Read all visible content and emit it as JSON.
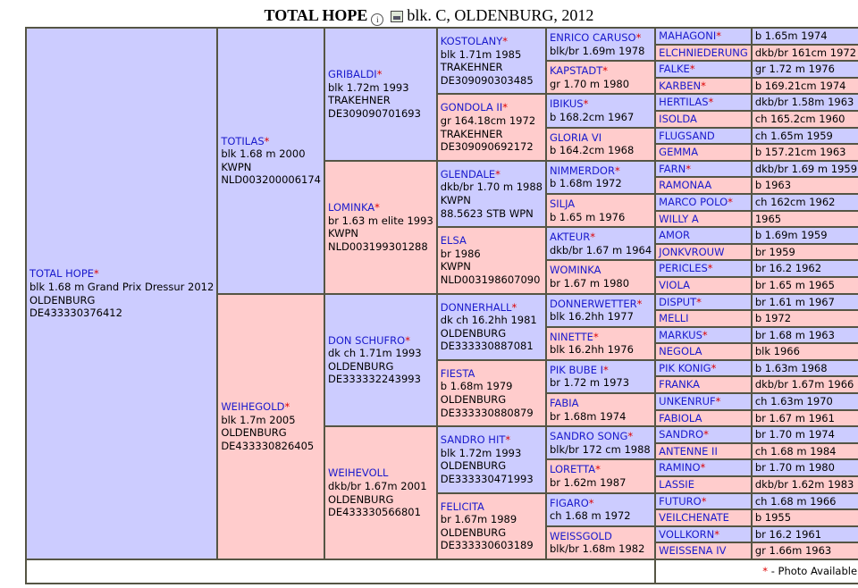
{
  "header": {
    "name": "TOTAL HOPE",
    "info_icon": "info-icon",
    "photo_icon": "image-icon",
    "details": "blk. C, OLDENBURG, 2012"
  },
  "legend": {
    "star": "*",
    "text": " - Photo Available"
  },
  "colors": {
    "male_bg": "#ccccff",
    "female_bg": "#ffcccc",
    "name": "#1a1acc",
    "star": "#dd0000"
  },
  "gen1": {
    "name": "TOTAL HOPE",
    "star": "*",
    "l1": "blk 1.68 m Grand Prix Dressur 2012",
    "l2": "OLDENBURG",
    "l3": "DE433330376412"
  },
  "gen2": [
    {
      "name": "TOTILAS",
      "star": "*",
      "l1": "blk 1.68 m 2000",
      "l2": "KWPN",
      "l3": "NLD003200006174"
    },
    {
      "name": "WEIHEGOLD",
      "star": "*",
      "l1": "blk 1.7m 2005",
      "l2": "OLDENBURG",
      "l3": "DE433330826405"
    }
  ],
  "gen3": [
    {
      "name": "GRIBALDI",
      "star": "*",
      "l1": "blk 1.72m 1993",
      "l2": "TRAKEHNER",
      "l3": "DE309090701693"
    },
    {
      "name": "LOMINKA",
      "star": "*",
      "l1": "br 1.63 m elite 1993",
      "l2": "KWPN",
      "l3": "NLD003199301288"
    },
    {
      "name": "DON SCHUFRO",
      "star": "*",
      "l1": "dk ch 1.71m 1993",
      "l2": "OLDENBURG",
      "l3": "DE333332243993"
    },
    {
      "name": "WEIHEVOLL",
      "star": "",
      "l1": "dkb/br 1.67m 2001",
      "l2": "OLDENBURG",
      "l3": "DE433330566801"
    }
  ],
  "gen4": [
    {
      "name": "KOSTOLANY",
      "star": "*",
      "l1": "blk 1.71m 1985",
      "l2": "TRAKEHNER",
      "l3": "DE309090303485"
    },
    {
      "name": "GONDOLA II",
      "star": "*",
      "l1": "gr 164.18cm 1972",
      "l2": "TRAKEHNER",
      "l3": "DE309090692172"
    },
    {
      "name": "GLENDALE",
      "star": "*",
      "l1": "dkb/br 1.70 m 1988",
      "l2": "KWPN",
      "l3": "88.5623 STB WPN"
    },
    {
      "name": "ELSA",
      "star": "",
      "l1": "br 1986",
      "l2": "KWPN",
      "l3": "NLD003198607090"
    },
    {
      "name": "DONNERHALL",
      "star": "*",
      "l1": "dk ch 16.2hh 1981",
      "l2": "OLDENBURG",
      "l3": "DE333330887081"
    },
    {
      "name": "FIESTA",
      "star": "",
      "l1": "b 1.68m 1979",
      "l2": "OLDENBURG",
      "l3": "DE333330880879"
    },
    {
      "name": "SANDRO HIT",
      "star": "*",
      "l1": "blk 1.72m 1993",
      "l2": "OLDENBURG",
      "l3": "DE333330471993"
    },
    {
      "name": "FELICITA",
      "star": "",
      "l1": "br 1.67m 1989",
      "l2": "OLDENBURG",
      "l3": "DE333330603189"
    }
  ],
  "gen5": [
    {
      "name": "ENRICO CARUSO",
      "star": "*",
      "l1": "blk/br 1.69m 1978"
    },
    {
      "name": "KAPSTADT",
      "star": "*",
      "l1": "gr 1.70 m 1980"
    },
    {
      "name": "IBIKUS",
      "star": "*",
      "l1": "b 168.2cm 1967"
    },
    {
      "name": "GLORIA VI",
      "star": "",
      "l1": "b 164.2cm 1968"
    },
    {
      "name": "NIMMERDOR",
      "star": "*",
      "l1": "b 1.68m 1972"
    },
    {
      "name": "SILJA",
      "star": "",
      "l1": "b 1.65 m 1976"
    },
    {
      "name": "AKTEUR",
      "star": "*",
      "l1": "dkb/br 1.67 m 1964"
    },
    {
      "name": "WOMINKA",
      "star": "",
      "l1": "br 1.67 m 1980"
    },
    {
      "name": "DONNERWETTER",
      "star": "*",
      "l1": "blk 16.2hh 1977"
    },
    {
      "name": "NINETTE",
      "star": "*",
      "l1": "blk 16.2hh 1976"
    },
    {
      "name": "PIK BUBE I",
      "star": "*",
      "l1": "br 1.72 m 1973"
    },
    {
      "name": "FABIA",
      "star": "",
      "l1": "br 1.68m 1974"
    },
    {
      "name": "SANDRO SONG",
      "star": "*",
      "l1": "blk/br 172 cm 1988"
    },
    {
      "name": "LORETTA",
      "star": "*",
      "l1": "br 1.62m 1987"
    },
    {
      "name": "FIGARO",
      "star": "*",
      "l1": "ch 1.68 m 1972"
    },
    {
      "name": "WEISSGOLD",
      "star": "",
      "l1": "blk/br 1.68m 1982"
    }
  ],
  "gen6": [
    {
      "name": "MAHAGONI",
      "star": "*",
      "info": "b 1.65m 1974"
    },
    {
      "name": "ELCHNIEDERUNG",
      "star": "",
      "info": "dkb/br 161cm 1972"
    },
    {
      "name": "FALKE",
      "star": "*",
      "info": "gr 1.72 m 1976"
    },
    {
      "name": "KARBEN",
      "star": "*",
      "info": "b 169.21cm 1974"
    },
    {
      "name": "HERTILAS",
      "star": "*",
      "info": "dkb/br 1.58m 1963"
    },
    {
      "name": "ISOLDA",
      "star": "",
      "info": "ch 165.2cm 1960"
    },
    {
      "name": "FLUGSAND",
      "star": "",
      "info": "ch 1.65m 1959"
    },
    {
      "name": "GEMMA",
      "star": "",
      "info": "b 157.21cm 1963"
    },
    {
      "name": "FARN",
      "star": "*",
      "info": "dkb/br 1.69 m 1959"
    },
    {
      "name": "RAMONAA",
      "star": "",
      "info": "b 1963"
    },
    {
      "name": "MARCO POLO",
      "star": "*",
      "info": "ch 162cm 1962"
    },
    {
      "name": "WILLY A",
      "star": "",
      "info": "1965"
    },
    {
      "name": "AMOR",
      "star": "",
      "info": "b 1.69m 1959"
    },
    {
      "name": "JONKVROUW",
      "star": "",
      "info": "br 1959"
    },
    {
      "name": "PERICLES",
      "star": "*",
      "info": "br 16.2 1962"
    },
    {
      "name": "VIOLA",
      "star": "",
      "info": "br 1.65 m 1965"
    },
    {
      "name": "DISPUT",
      "star": "*",
      "info": "br 1.61 m 1967"
    },
    {
      "name": "MELLI",
      "star": "",
      "info": "b 1972"
    },
    {
      "name": "MARKUS",
      "star": "*",
      "info": "br 1.68 m 1963"
    },
    {
      "name": "NEGOLA",
      "star": "",
      "info": "blk 1966"
    },
    {
      "name": "PIK KONIG",
      "star": "*",
      "info": "b 1.63m 1968"
    },
    {
      "name": "FRANKA",
      "star": "",
      "info": "dkb/br 1.67m 1966"
    },
    {
      "name": "UNKENRUF",
      "star": "*",
      "info": "ch 1.63m 1970"
    },
    {
      "name": "FABIOLA",
      "star": "",
      "info": "br 1.67 m 1961"
    },
    {
      "name": "SANDRO",
      "star": "*",
      "info": "br 1.70 m 1974"
    },
    {
      "name": "ANTENNE II",
      "star": "",
      "info": "ch 1.68 m 1984"
    },
    {
      "name": "RAMINO",
      "star": "*",
      "info": "br 1.70 m 1980"
    },
    {
      "name": "LASSIE",
      "star": "",
      "info": "dkb/br 1.62m 1983"
    },
    {
      "name": "FUTURO",
      "star": "*",
      "info": "ch 1.68 m 1966"
    },
    {
      "name": "VEILCHENATE",
      "star": "",
      "info": "b 1955"
    },
    {
      "name": "VOLLKORN",
      "star": "*",
      "info": "br 16.2 1961"
    },
    {
      "name": "WEISSENA IV",
      "star": "",
      "info": "gr 1.66m 1963"
    }
  ]
}
